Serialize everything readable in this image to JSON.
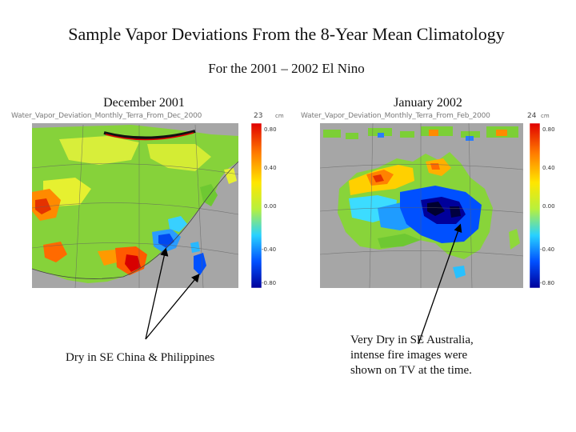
{
  "title": "Sample Vapor Deviations From the 8-Year Mean Climatology",
  "subtitle": "For the 2001 – 2002 El Nino",
  "panels": [
    {
      "month_label": "December 2001",
      "map_header": "Water_Vapor_Deviation_Monthly_Terra_From_Dec_2000",
      "panel_number": "23",
      "unit": "cm",
      "ticks": [
        "0.80",
        "0.40",
        "0.00",
        "-0.40",
        "-0.80"
      ]
    },
    {
      "month_label": "January 2002",
      "map_header": "Water_Vapor_Deviation_Monthly_Terra_From_Feb_2000",
      "panel_number": "24",
      "unit": "cm",
      "ticks": [
        "0.80",
        "0.40",
        "0.00",
        "-0.40",
        "-0.80"
      ]
    }
  ],
  "annotations": {
    "left": "Dry in SE China & Philippines",
    "right_lines": [
      "Very Dry in SE Australia,",
      "intense fire images were",
      "shown on TV at the time."
    ]
  },
  "colors": {
    "ocean": "#a6a6a6",
    "colorbar_stops": [
      "#e00000",
      "#ff7a00",
      "#ffe600",
      "#b8f03c",
      "#28d2ff",
      "#0050ff",
      "#00009a"
    ]
  }
}
